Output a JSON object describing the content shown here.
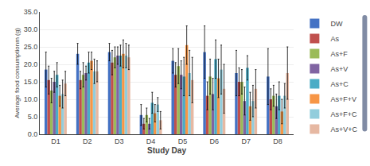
{
  "chart_data": {
    "type": "bar",
    "categories": [
      "D1",
      "D2",
      "D3",
      "D4",
      "D5",
      "D6",
      "D7",
      "D8"
    ],
    "series": [
      {
        "name": "DW",
        "color": "#4472C4",
        "values": [
          18.5,
          23.0,
          23.5,
          5.5,
          21.0,
          23.5,
          17.5,
          16.5
        ],
        "errors": [
          5.0,
          3.0,
          2.5,
          3.0,
          3.5,
          7.5,
          6.5,
          8.0
        ]
      },
      {
        "name": "As",
        "color": "#C0504D",
        "values": [
          15.5,
          15.5,
          20.5,
          3.0,
          17.0,
          11.0,
          15.0,
          10.0
        ],
        "errors": [
          4.0,
          2.5,
          3.5,
          1.5,
          3.5,
          4.0,
          4.0,
          3.0
        ]
      },
      {
        "name": "As+F",
        "color": "#9BBB59",
        "values": [
          12.5,
          17.0,
          22.0,
          5.5,
          19.5,
          16.5,
          15.0,
          11.0
        ],
        "errors": [
          3.5,
          3.5,
          3.0,
          2.0,
          5.0,
          5.0,
          3.5,
          3.0
        ]
      },
      {
        "name": "As+V",
        "color": "#8064A2",
        "values": [
          15.0,
          17.5,
          22.5,
          3.0,
          17.0,
          11.5,
          9.5,
          8.0
        ],
        "errors": [
          3.0,
          2.0,
          2.5,
          1.5,
          4.0,
          4.5,
          4.0,
          3.5
        ]
      },
      {
        "name": "As+C",
        "color": "#4BACC6",
        "values": [
          17.0,
          20.5,
          22.5,
          9.0,
          16.5,
          21.5,
          19.0,
          11.0
        ],
        "errors": [
          3.5,
          3.0,
          3.0,
          3.0,
          5.5,
          5.5,
          3.5,
          4.0
        ]
      },
      {
        "name": "As+F+V",
        "color": "#F79646",
        "values": [
          11.0,
          21.0,
          23.0,
          6.0,
          25.5,
          16.0,
          8.0,
          6.5
        ],
        "errors": [
          3.0,
          2.5,
          4.0,
          2.5,
          5.5,
          5.5,
          4.0,
          3.5
        ]
      },
      {
        "name": "As+F+C",
        "color": "#92CDDC",
        "values": [
          11.5,
          18.0,
          22.5,
          8.5,
          17.5,
          18.5,
          9.5,
          11.0
        ],
        "errors": [
          4.0,
          3.5,
          3.5,
          2.0,
          6.5,
          7.0,
          4.5,
          3.5
        ]
      },
      {
        "name": "As+V+C",
        "color": "#E6B8A2",
        "values": [
          14.5,
          18.0,
          22.0,
          4.0,
          15.5,
          13.0,
          13.0,
          17.5
        ],
        "errors": [
          3.5,
          3.0,
          3.5,
          2.5,
          6.5,
          7.0,
          5.5,
          7.5
        ]
      }
    ],
    "xlabel": "Study Day",
    "ylabel": "Average food consumptionm (g)",
    "ylim": [
      0.0,
      35.0
    ],
    "yticks": [
      {
        "value": 0,
        "label": "0.0"
      },
      {
        "value": 5,
        "label": "5.0"
      },
      {
        "value": 10,
        "label": "10.0"
      },
      {
        "value": 15,
        "label": "15.0"
      },
      {
        "value": 20,
        "label": "20.0"
      },
      {
        "value": 25,
        "label": "25.0"
      },
      {
        "value": 30,
        "label": "30.0"
      },
      {
        "value": 35,
        "label": "35.0"
      }
    ],
    "grid": true,
    "legend": "right"
  }
}
